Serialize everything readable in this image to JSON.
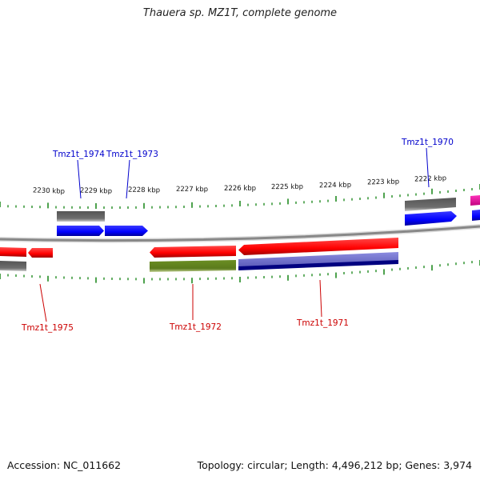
{
  "title": "Thauera sp. MZ1T, complete genome",
  "footer": {
    "accession_label": "Accession:",
    "accession": "NC_011662",
    "topology_label": "Topology:",
    "topology": "circular",
    "length_label": "Length:",
    "length": "4,496,212 bp",
    "genes_label": "Genes:",
    "genes": "3,974"
  },
  "scale": {
    "unit": "kbp",
    "ticks": [
      "2230 kbp",
      "2229 kbp",
      "2228 kbp",
      "2227 kbp",
      "2226 kbp",
      "2225 kbp",
      "2224 kbp",
      "2223 kbp",
      "2222 kbp"
    ]
  },
  "gene_labels": [
    {
      "name": "Tmz1t_1974",
      "strand": "forward",
      "color": "#0000cc"
    },
    {
      "name": "Tmz1t_1973",
      "strand": "forward",
      "color": "#0000cc"
    },
    {
      "name": "Tmz1t_1970",
      "strand": "forward",
      "color": "#0000cc"
    },
    {
      "name": "Tmz1t_1975",
      "strand": "reverse",
      "color": "#cc0000"
    },
    {
      "name": "Tmz1t_1972",
      "strand": "reverse",
      "color": "#cc0000"
    },
    {
      "name": "Tmz1t_1971",
      "strand": "reverse",
      "color": "#cc0000"
    }
  ],
  "colors": {
    "forward_gene": "#0000ff",
    "reverse_gene": "#ff0000",
    "backbone": "#888888",
    "tick": "#228b22",
    "cds_gray": "#666666",
    "olive": "#6b8e23",
    "navy": "#000080",
    "lavender": "#7b7bd0",
    "magenta": "#ff00aa"
  }
}
